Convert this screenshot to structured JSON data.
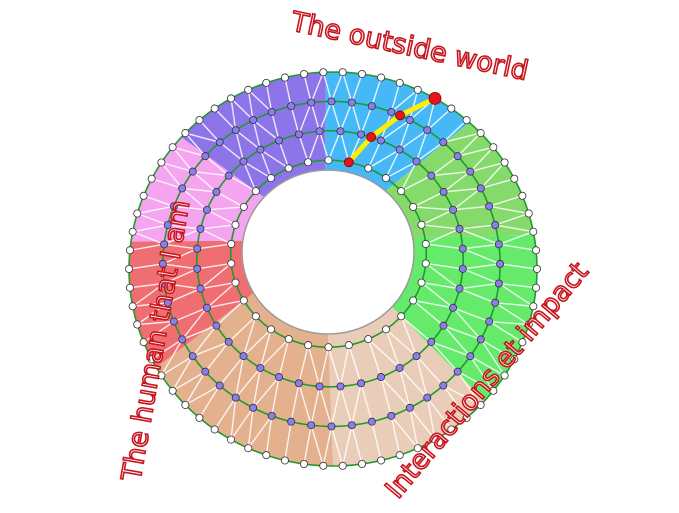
{
  "labels": {
    "top": "The outside world",
    "left": "The human that I am",
    "right": "Interactions et impact"
  },
  "colors": {
    "label_outline": "#c8161e",
    "ring_line": "#1f9a2e",
    "mesh_line": "#ffffff",
    "inner_node": "#8b7cf0",
    "boundary_node": "#ffffff",
    "highlight_path": "#ffee00",
    "highlight_node": "#e8141b"
  },
  "sectors": [
    {
      "name": "blue",
      "color": "#46b8f6"
    },
    {
      "name": "green",
      "color": "#86da6c"
    },
    {
      "name": "bright-green",
      "color": "#66ea6c"
    },
    {
      "name": "light-peach",
      "color": "#e9cdb8"
    },
    {
      "name": "tan",
      "color": "#e4b18f"
    },
    {
      "name": "red",
      "color": "#ef6e72"
    },
    {
      "name": "pink",
      "color": "#f5a5f0"
    },
    {
      "name": "purple",
      "color": "#8e74e9"
    }
  ]
}
